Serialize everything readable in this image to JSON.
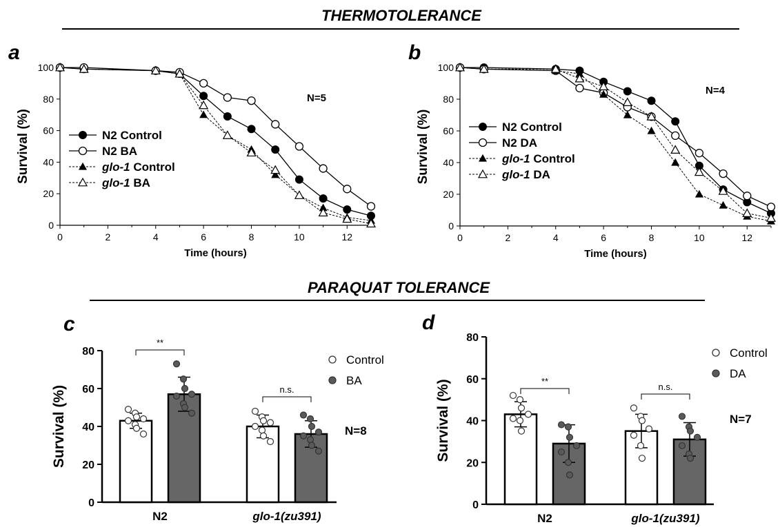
{
  "sections": {
    "top": "THERMOTOLERANCE",
    "bottom": "PARAQUAT TOLERANCE"
  },
  "colors": {
    "dark_bar": "#666666",
    "dark_point": "#5a5a5a",
    "line": "#000000"
  },
  "chart_data": [
    {
      "panel": "a",
      "type": "line",
      "xlabel": "Time (hours)",
      "ylabel": "Survival (%)",
      "xlim": [
        0,
        13
      ],
      "ylim": [
        0,
        100
      ],
      "xticks": [
        0,
        2,
        4,
        6,
        8,
        10,
        12
      ],
      "yticks": [
        0,
        20,
        40,
        60,
        80,
        100
      ],
      "annotation": "N=5",
      "legend_placement": "left-middle",
      "x": [
        0,
        1,
        4,
        5,
        6,
        7,
        8,
        9,
        10,
        11,
        12,
        13
      ],
      "series": [
        {
          "name": "N2 Control",
          "strain": "N2",
          "treatment": "Control",
          "marker": "filled-circle",
          "dashed": false,
          "values": [
            100,
            99,
            98,
            96,
            82,
            69,
            61,
            48,
            29,
            17,
            10,
            6
          ]
        },
        {
          "name": "N2 BA",
          "strain": "N2",
          "treatment": "BA",
          "marker": "open-circle",
          "dashed": false,
          "values": [
            100,
            100,
            98,
            97,
            90,
            81,
            79,
            64,
            50,
            36,
            23,
            12
          ]
        },
        {
          "name": "glo-1 Control",
          "strain": "glo-1",
          "treatment": "Control",
          "marker": "filled-triangle",
          "dashed": true,
          "values": [
            100,
            99,
            98,
            96,
            70,
            57,
            48,
            32,
            19,
            11,
            5,
            3
          ]
        },
        {
          "name": "glo-1 BA",
          "strain": "glo-1",
          "treatment": "BA",
          "marker": "open-triangle",
          "dashed": true,
          "values": [
            100,
            99,
            98,
            96,
            76,
            57,
            46,
            35,
            19,
            8,
            4,
            1
          ]
        }
      ]
    },
    {
      "panel": "b",
      "type": "line",
      "xlabel": "Time (hours)",
      "ylabel": "Survival (%)",
      "xlim": [
        0,
        13
      ],
      "ylim": [
        0,
        100
      ],
      "xticks": [
        0,
        2,
        4,
        6,
        8,
        10,
        12
      ],
      "yticks": [
        0,
        20,
        40,
        60,
        80,
        100
      ],
      "annotation": "N=4",
      "legend_placement": "left-middle",
      "x": [
        0,
        1,
        4,
        5,
        6,
        7,
        8,
        9,
        10,
        11,
        12,
        13
      ],
      "series": [
        {
          "name": "N2 Control",
          "strain": "N2",
          "treatment": "Control",
          "marker": "filled-circle",
          "dashed": false,
          "values": [
            100,
            100,
            99,
            98,
            91,
            85,
            79,
            66,
            38,
            23,
            15,
            8
          ]
        },
        {
          "name": "N2 DA",
          "strain": "N2",
          "treatment": "DA",
          "marker": "open-circle",
          "dashed": false,
          "values": [
            100,
            99,
            98,
            87,
            84,
            75,
            69,
            57,
            46,
            33,
            19,
            12
          ]
        },
        {
          "name": "glo-1 Control",
          "strain": "glo-1",
          "treatment": "Control",
          "marker": "filled-triangle",
          "dashed": true,
          "values": [
            100,
            99,
            98,
            96,
            83,
            70,
            60,
            40,
            20,
            13,
            6,
            3
          ]
        },
        {
          "name": "glo-1 DA",
          "strain": "glo-1",
          "treatment": "DA",
          "marker": "open-triangle",
          "dashed": true,
          "values": [
            100,
            99,
            99,
            93,
            88,
            78,
            69,
            48,
            34,
            22,
            8,
            5
          ]
        }
      ]
    },
    {
      "panel": "c",
      "type": "bar",
      "ylabel": "Survival (%)",
      "ylim": [
        0,
        80
      ],
      "yticks": [
        0,
        20,
        40,
        60,
        80
      ],
      "categories": [
        {
          "label": "N2",
          "italic": false
        },
        {
          "label": "glo-1(zu391)",
          "italic": true
        }
      ],
      "annotation": "N=8",
      "legend_placement": "top-right",
      "series": [
        {
          "name": "Control",
          "fill": "white",
          "values": [
            43,
            40
          ],
          "errors": [
            4,
            6
          ],
          "points": [
            [
              49,
              47,
              45,
              44,
              43,
              41,
              39,
              36
            ],
            [
              48,
              45,
              43,
              42,
              40,
              38,
              35,
              32
            ]
          ]
        },
        {
          "name": "BA",
          "fill": "dark",
          "values": [
            57,
            36
          ],
          "errors": [
            9,
            7
          ],
          "points": [
            [
              73,
              65,
              60,
              57,
              56,
              52,
              50,
              47
            ],
            [
              46,
              44,
              40,
              37,
              35,
              33,
              30,
              27
            ]
          ]
        }
      ],
      "significance": [
        {
          "category": 0,
          "label": "**"
        },
        {
          "category": 1,
          "label": "n.s."
        }
      ]
    },
    {
      "panel": "d",
      "type": "bar",
      "ylabel": "Survival (%)",
      "ylim": [
        0,
        80
      ],
      "yticks": [
        0,
        20,
        40,
        60,
        80
      ],
      "categories": [
        {
          "label": "N2",
          "italic": false
        },
        {
          "label": "glo-1(zu391)",
          "italic": true
        }
      ],
      "annotation": "N=7",
      "legend_placement": "top-right",
      "series": [
        {
          "name": "Control",
          "fill": "white",
          "values": [
            43,
            35
          ],
          "errors": [
            6,
            8
          ],
          "points": [
            [
              52,
              50,
              46,
              43,
              41,
              40,
              35
            ],
            [
              46,
              42,
              40,
              36,
              33,
              28,
              22
            ]
          ]
        },
        {
          "name": "DA",
          "fill": "dark",
          "values": [
            29,
            31
          ],
          "errors": [
            9,
            8
          ],
          "points": [
            [
              38,
              37,
              32,
              28,
              25,
              20,
              14
            ],
            [
              42,
              37,
              35,
              32,
              28,
              24,
              22
            ]
          ]
        }
      ],
      "significance": [
        {
          "category": 0,
          "label": "**"
        },
        {
          "category": 1,
          "label": "n.s."
        }
      ]
    }
  ]
}
